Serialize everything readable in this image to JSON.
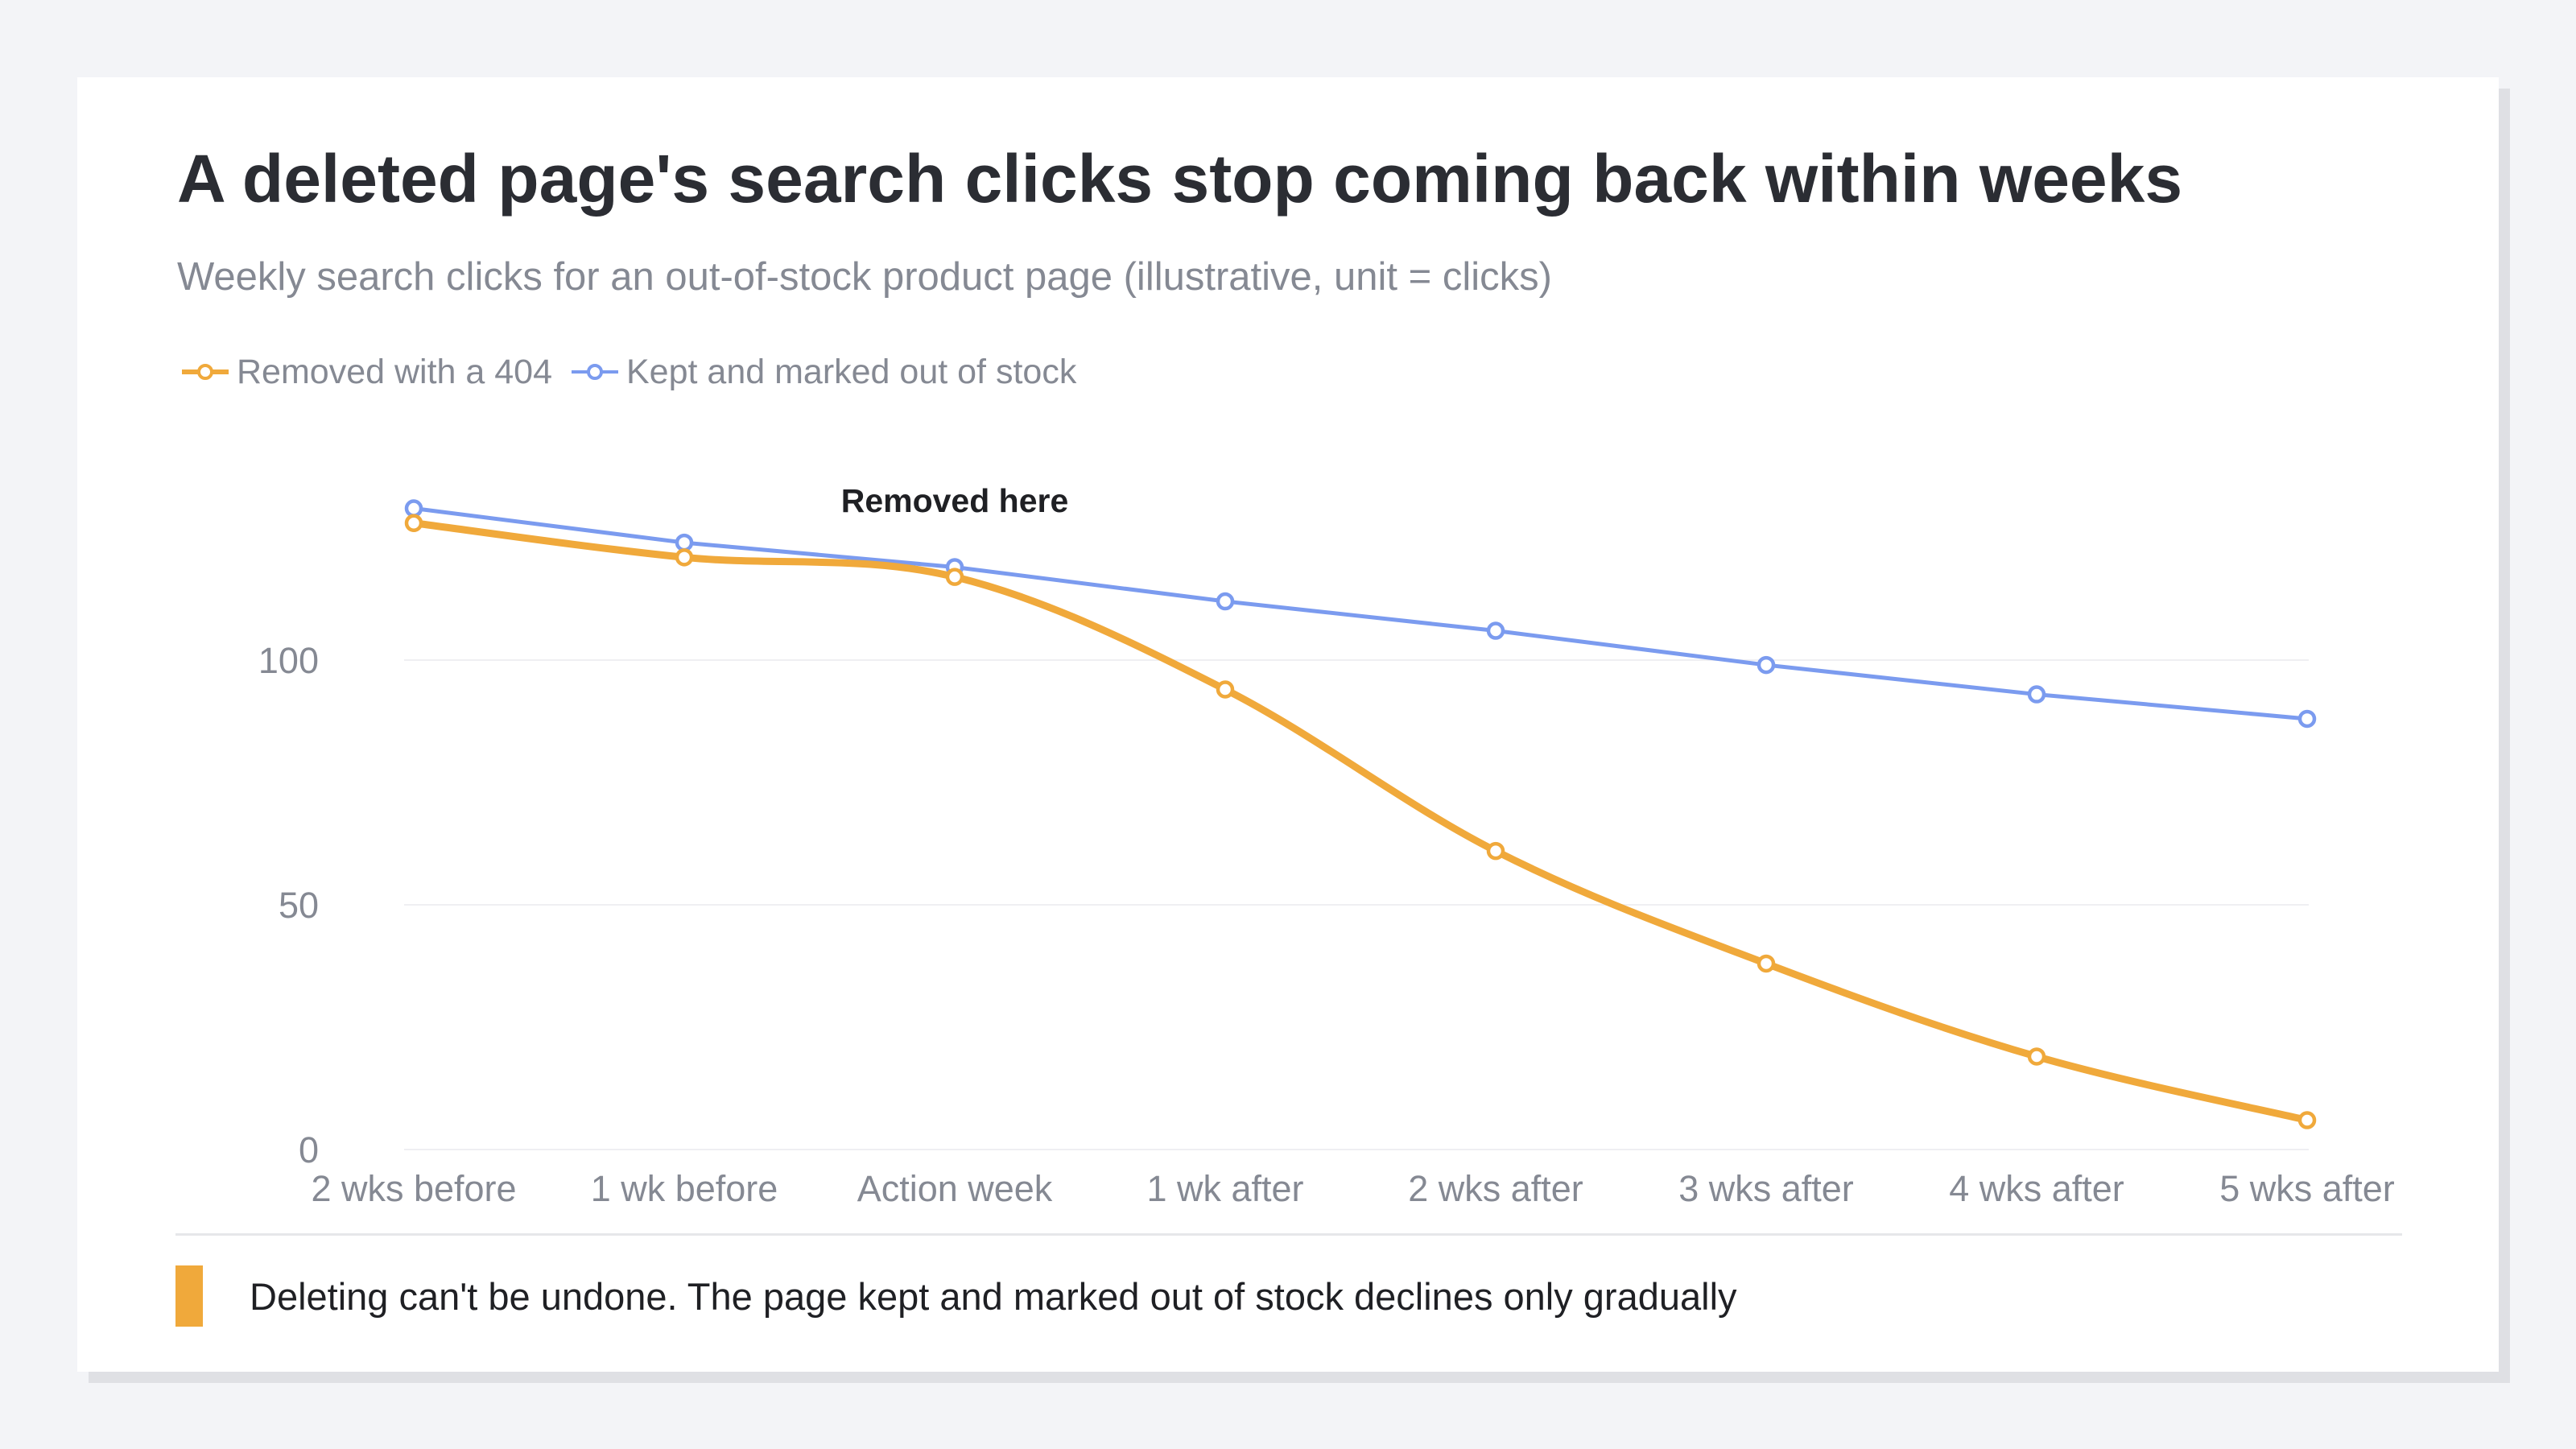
{
  "title": "A deleted page's search clicks stop coming back within weeks",
  "subtitle": "Weekly search clicks for an out-of-stock product page (illustrative, unit = clicks)",
  "colors": {
    "removed": "#f0a93b",
    "kept": "#7b9bef",
    "grid": "#efeff2",
    "tick": "#858993"
  },
  "chart_data": {
    "type": "line",
    "categories": [
      "2 wks before",
      "1 wk before",
      "Action week",
      "1 wk after",
      "2 wks after",
      "3 wks after",
      "4 wks after",
      "5 wks after"
    ],
    "series": [
      {
        "name": "Removed with a 404",
        "color": "#f0a93b",
        "values": [
          128,
          121,
          117,
          94,
          61,
          38,
          19,
          6
        ]
      },
      {
        "name": "Kept and marked out of stock",
        "color": "#7b9bef",
        "values": [
          131,
          124,
          119,
          112,
          106,
          99,
          93,
          88
        ]
      }
    ],
    "y_ticks": [
      0,
      50,
      100
    ],
    "ylim": [
      0,
      140
    ],
    "grid": true,
    "legend": "top-left",
    "annotation": {
      "text": "Removed here",
      "category": "Action week"
    }
  },
  "footer": {
    "text": "Deleting can't be undone. The page kept and marked out of stock declines only gradually",
    "color": "#f0a93b"
  }
}
